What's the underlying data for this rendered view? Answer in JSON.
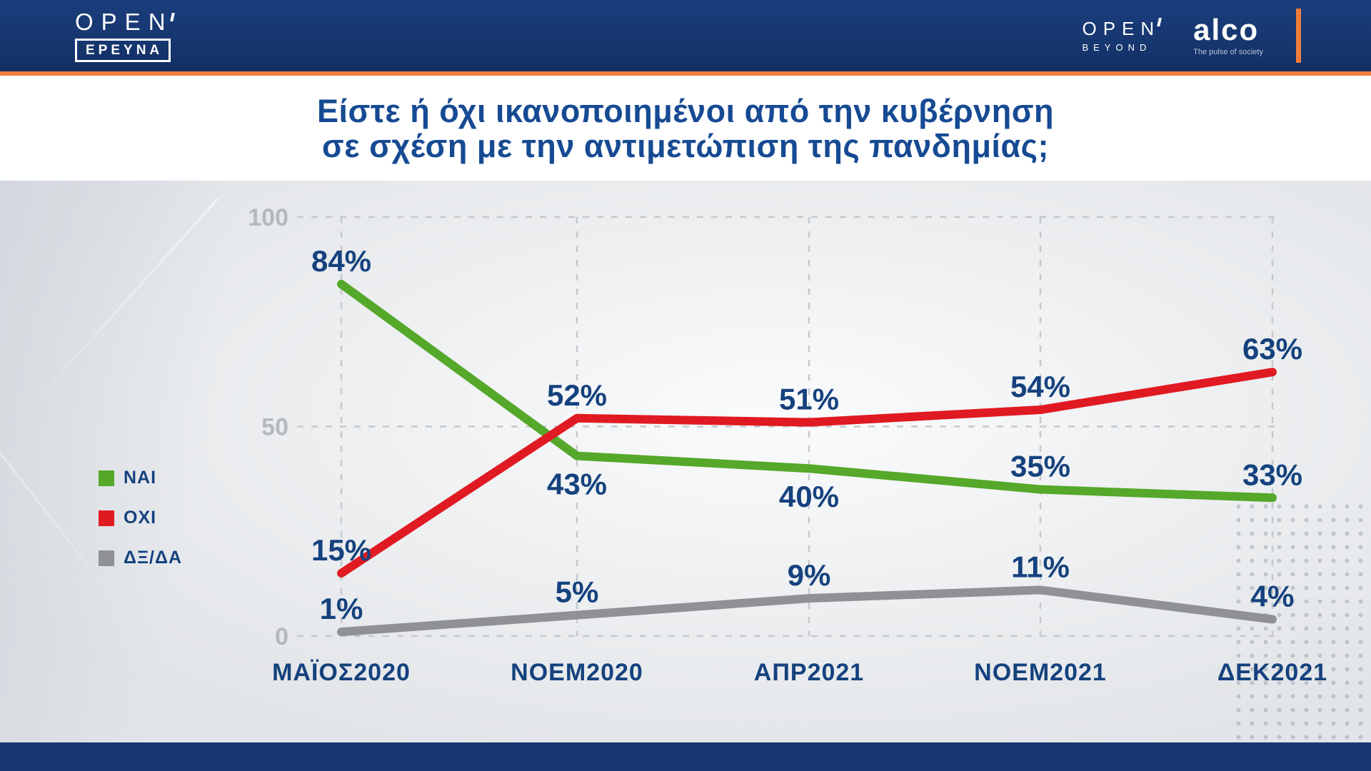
{
  "header": {
    "open_logo": "OPEN",
    "ereyna_label": "ΕΡΕΥΝΑ",
    "open_beyond": {
      "open": "OPEN",
      "beyond": "BEYOND"
    },
    "alco": {
      "name": "alco",
      "tagline": "The pulse of society"
    }
  },
  "title": {
    "line1": "Είστε ή όχι ικανοποιημένοι από την κυβέρνηση",
    "line2": "σε σχέση με την αντιμετώπιση της πανδημίας;"
  },
  "colors": {
    "navy": "#16366f",
    "orange": "#ef7d3a",
    "title_blue": "#164a93",
    "label_blue": "#15427e",
    "green": "#55a82a",
    "red": "#e01a22",
    "gray": "#8f9196",
    "grid_gray": "#c6c9cc",
    "tick_gray": "#b5b9be"
  },
  "chart_data": {
    "type": "line",
    "title": "Είστε ή όχι ικανοποιημένοι από την κυβέρνηση σε σχέση με την αντιμετώπιση της πανδημίας;",
    "categories": [
      "ΜΑΪΟΣ2020",
      "ΝΟΕΜ2020",
      "ΑΠΡ2021",
      "ΝΟΕΜ2021",
      "ΔΕΚ2021"
    ],
    "series": [
      {
        "name": "ΝΑΙ",
        "color_key": "green",
        "values": [
          84,
          43,
          40,
          35,
          33
        ],
        "label_side": [
          "above",
          "below",
          "below",
          "above",
          "above"
        ]
      },
      {
        "name": "ΟΧΙ",
        "color_key": "red",
        "values": [
          15,
          52,
          51,
          54,
          63
        ],
        "label_side": [
          "above",
          "above",
          "above",
          "above",
          "above"
        ]
      },
      {
        "name": "ΔΞ/ΔΑ",
        "color_key": "gray",
        "values": [
          1,
          5,
          9,
          11,
          4
        ],
        "label_side": [
          "above",
          "above",
          "above",
          "above",
          "above"
        ]
      }
    ],
    "yticks": [
      0,
      50,
      100
    ],
    "ylim": [
      0,
      100
    ],
    "value_suffix": "%",
    "grid": "dashed",
    "legend_position": "left"
  }
}
